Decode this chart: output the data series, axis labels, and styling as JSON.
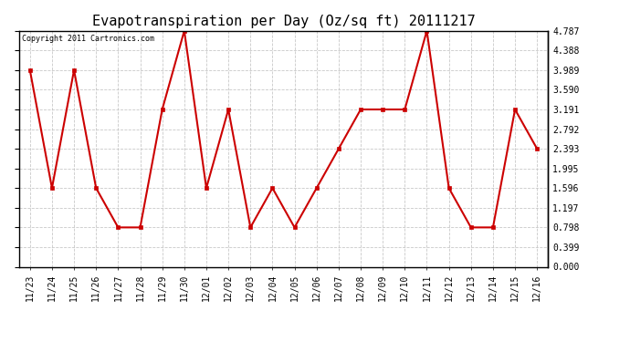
{
  "title": "Evapotranspiration per Day (Oz/sq ft) 20111217",
  "copyright_text": "Copyright 2011 Cartronics.com",
  "dates": [
    "11/23",
    "11/24",
    "11/25",
    "11/26",
    "11/27",
    "11/28",
    "11/29",
    "11/30",
    "12/01",
    "12/02",
    "12/03",
    "12/04",
    "12/05",
    "12/06",
    "12/07",
    "12/08",
    "12/09",
    "12/10",
    "12/11",
    "12/12",
    "12/13",
    "12/14",
    "12/15",
    "12/16"
  ],
  "values": [
    3.989,
    1.596,
    3.989,
    1.596,
    0.798,
    0.798,
    3.191,
    4.787,
    1.596,
    3.191,
    0.798,
    1.596,
    0.798,
    1.596,
    2.393,
    3.191,
    3.191,
    3.191,
    4.787,
    1.596,
    0.798,
    0.798,
    3.191,
    2.393
  ],
  "ylim": [
    0.0,
    4.787
  ],
  "yticks": [
    0.0,
    0.399,
    0.798,
    1.197,
    1.596,
    1.995,
    2.393,
    2.792,
    3.191,
    3.59,
    3.989,
    4.388,
    4.787
  ],
  "line_color": "#cc0000",
  "marker_color": "#cc0000",
  "bg_color": "#ffffff",
  "grid_color": "#bbbbbb",
  "title_fontsize": 11,
  "tick_fontsize": 7,
  "copyright_fontsize": 6
}
